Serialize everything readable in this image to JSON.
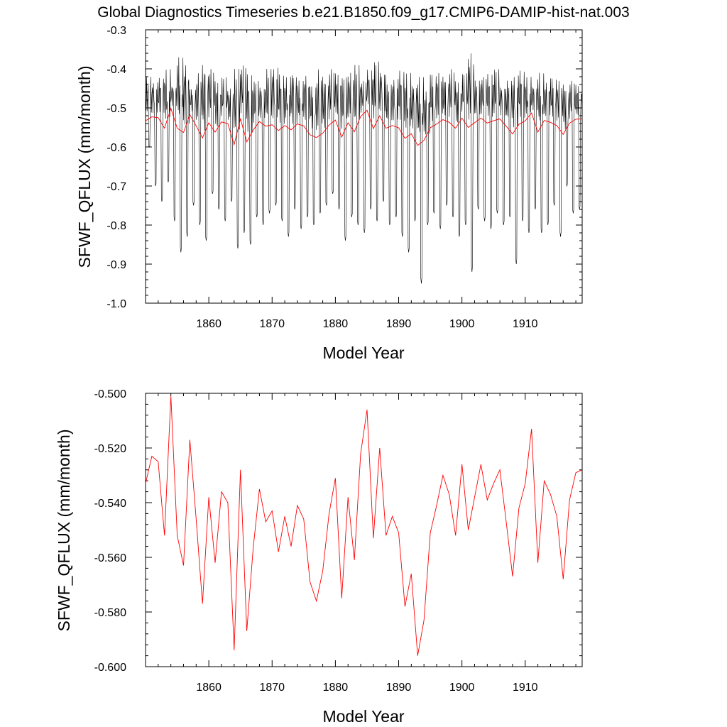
{
  "title": "Global Diagnostics Timeseries b.e21.B1850.f09_g17.CMIP6-DAMIP-hist-nat.003",
  "chart_data": [
    {
      "type": "line",
      "xlabel": "Model Year",
      "ylabel": "SFWF_QFLUX (mm/month)",
      "xlim": [
        1850,
        1919
      ],
      "ylim": [
        -1.0,
        -0.3
      ],
      "xticks": [
        1860,
        1870,
        1880,
        1890,
        1900,
        1910
      ],
      "xtick_labels": [
        "1860",
        "1870",
        "1880",
        "1890",
        "1900",
        "1910"
      ],
      "yticks": [
        -0.3,
        -0.4,
        -0.5,
        -0.6,
        -0.7,
        -0.8,
        -0.9,
        -1.0
      ],
      "ytick_labels": [
        "-0.3",
        "-0.4",
        "-0.5",
        "-0.6",
        "-0.7",
        "-0.8",
        "-0.9",
        "-1.0"
      ],
      "grid": false,
      "legend": "none",
      "monthly_note": "black series is monthly, 840 points; values estimated as annual minima/maxima envelope",
      "series": [
        {
          "color": "#000000",
          "resolution": "monthly",
          "annual_min": [
            -0.6,
            -0.7,
            -0.74,
            -0.69,
            -0.79,
            -0.87,
            -0.83,
            -0.75,
            -0.8,
            -0.84,
            -0.72,
            -0.76,
            -0.79,
            -0.74,
            -0.86,
            -0.82,
            -0.85,
            -0.78,
            -0.8,
            -0.77,
            -0.75,
            -0.79,
            -0.83,
            -0.76,
            -0.81,
            -0.78,
            -0.8,
            -0.77,
            -0.75,
            -0.72,
            -0.76,
            -0.84,
            -0.78,
            -0.8,
            -0.82,
            -0.76,
            -0.79,
            -0.74,
            -0.8,
            -0.78,
            -0.83,
            -0.87,
            -0.79,
            -0.95,
            -0.8,
            -0.77,
            -0.81,
            -0.75,
            -0.78,
            -0.83,
            -0.8,
            -0.92,
            -0.76,
            -0.79,
            -0.81,
            -0.77,
            -0.8,
            -0.78,
            -0.9,
            -0.79,
            -0.82,
            -0.76,
            -0.82,
            -0.8,
            -0.75,
            -0.83,
            -0.7,
            -0.77,
            -0.76,
            -0.78
          ],
          "annual_max": [
            -0.42,
            -0.43,
            -0.42,
            -0.4,
            -0.44,
            -0.37,
            -0.38,
            -0.45,
            -0.41,
            -0.39,
            -0.4,
            -0.43,
            -0.42,
            -0.45,
            -0.4,
            -0.39,
            -0.41,
            -0.43,
            -0.44,
            -0.4,
            -0.39,
            -0.41,
            -0.42,
            -0.4,
            -0.43,
            -0.41,
            -0.44,
            -0.4,
            -0.42,
            -0.4,
            -0.41,
            -0.42,
            -0.41,
            -0.39,
            -0.43,
            -0.4,
            -0.38,
            -0.4,
            -0.44,
            -0.42,
            -0.4,
            -0.41,
            -0.43,
            -0.42,
            -0.45,
            -0.41,
            -0.41,
            -0.42,
            -0.4,
            -0.43,
            -0.41,
            -0.36,
            -0.43,
            -0.42,
            -0.41,
            -0.4,
            -0.44,
            -0.43,
            -0.41,
            -0.4,
            -0.42,
            -0.44,
            -0.41,
            -0.43,
            -0.42,
            -0.43,
            -0.44,
            -0.43,
            -0.44,
            -0.45
          ]
        },
        {
          "color": "#ff0000",
          "resolution": "annual",
          "ref": "annual_mean"
        }
      ]
    },
    {
      "type": "line",
      "xlabel": "Model Year",
      "ylabel": "SFWF_QFLUX (mm/month)",
      "xlim": [
        1850,
        1919
      ],
      "ylim": [
        -0.6,
        -0.5
      ],
      "xticks": [
        1860,
        1870,
        1880,
        1890,
        1900,
        1910
      ],
      "xtick_labels": [
        "1860",
        "1870",
        "1880",
        "1890",
        "1900",
        "1910"
      ],
      "yticks": [
        -0.5,
        -0.52,
        -0.54,
        -0.56,
        -0.58,
        -0.6
      ],
      "ytick_labels": [
        "-0.500",
        "-0.520",
        "-0.540",
        "-0.560",
        "-0.580",
        "-0.600"
      ],
      "grid": false,
      "legend": "none",
      "series": [
        {
          "color": "#ff0000",
          "resolution": "annual",
          "x": [
            1850,
            1851,
            1852,
            1853,
            1854,
            1855,
            1856,
            1857,
            1858,
            1859,
            1860,
            1861,
            1862,
            1863,
            1864,
            1865,
            1866,
            1867,
            1868,
            1869,
            1870,
            1871,
            1872,
            1873,
            1874,
            1875,
            1876,
            1877,
            1878,
            1879,
            1880,
            1881,
            1882,
            1883,
            1884,
            1885,
            1886,
            1887,
            1888,
            1889,
            1890,
            1891,
            1892,
            1893,
            1894,
            1895,
            1896,
            1897,
            1898,
            1899,
            1900,
            1901,
            1902,
            1903,
            1904,
            1905,
            1906,
            1907,
            1908,
            1909,
            1910,
            1911,
            1912,
            1913,
            1914,
            1915,
            1916,
            1917,
            1918,
            1919
          ],
          "values": [
            -0.533,
            -0.523,
            -0.525,
            -0.552,
            -0.501,
            -0.552,
            -0.563,
            -0.517,
            -0.546,
            -0.577,
            -0.538,
            -0.562,
            -0.536,
            -0.54,
            -0.594,
            -0.528,
            -0.587,
            -0.557,
            -0.535,
            -0.547,
            -0.543,
            -0.558,
            -0.545,
            -0.556,
            -0.541,
            -0.546,
            -0.569,
            -0.576,
            -0.565,
            -0.544,
            -0.531,
            -0.575,
            -0.538,
            -0.561,
            -0.522,
            -0.506,
            -0.553,
            -0.52,
            -0.552,
            -0.545,
            -0.551,
            -0.578,
            -0.566,
            -0.596,
            -0.583,
            -0.551,
            -0.541,
            -0.53,
            -0.537,
            -0.552,
            -0.526,
            -0.55,
            -0.538,
            -0.526,
            -0.539,
            -0.533,
            -0.528,
            -0.547,
            -0.567,
            -0.542,
            -0.533,
            -0.513,
            -0.562,
            -0.532,
            -0.537,
            -0.545,
            -0.568,
            -0.539,
            -0.529,
            -0.528
          ]
        }
      ]
    }
  ]
}
